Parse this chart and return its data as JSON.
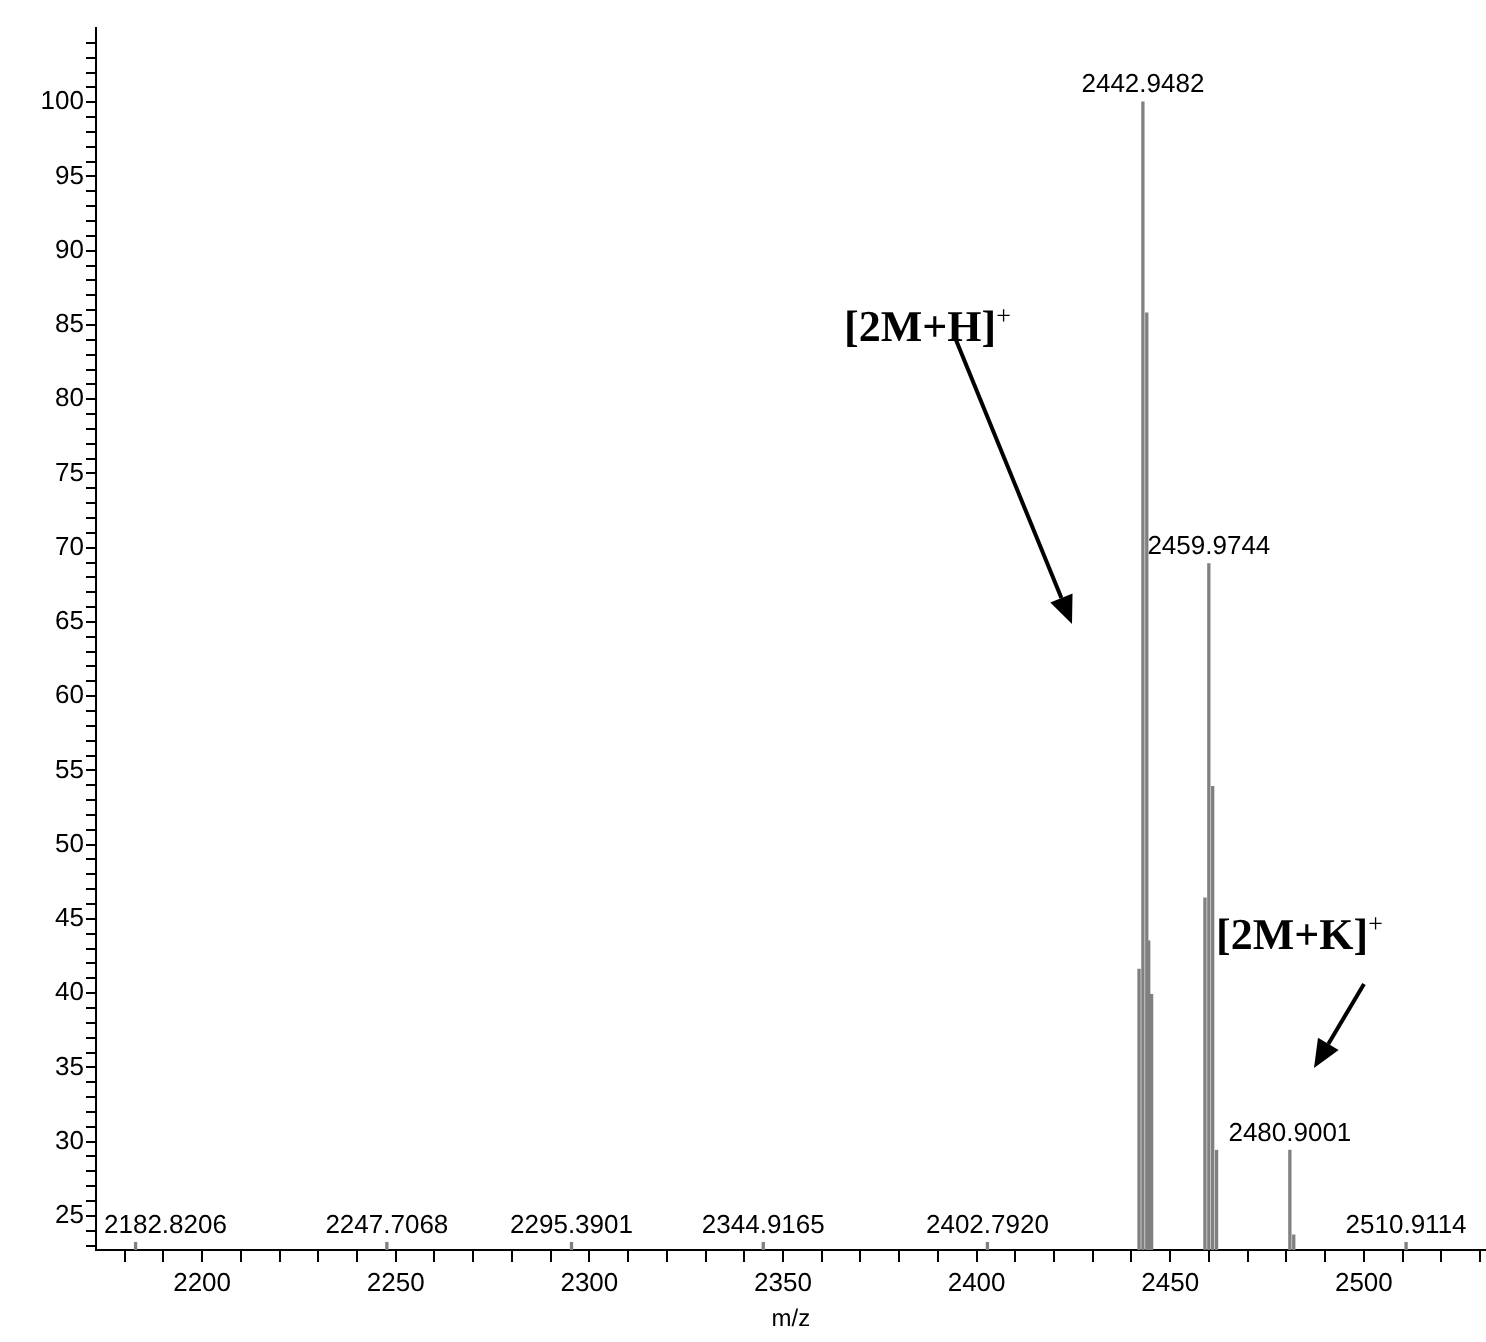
{
  "chart_data": {
    "type": "bar",
    "xlabel": "m/z",
    "color": "#808080",
    "x": [
      2182.8206,
      2247.7068,
      2295.3901,
      2344.9165,
      2402.792,
      2441.95,
      2442.9482,
      2443.95,
      2444.45,
      2445.2,
      2458.97,
      2459.9744,
      2460.97,
      2461.97,
      2480.9001,
      2481.9,
      2510.9114
    ],
    "values": [
      23.2,
      23.2,
      23.2,
      23.2,
      23.2,
      41.6,
      100,
      85.8,
      43.5,
      39.9,
      46.4,
      68.9,
      53.9,
      29.4,
      29.4,
      23.7,
      23.2
    ],
    "xlim": [
      2172.6,
      2531.5
    ],
    "ylim": [
      22.7,
      105
    ],
    "xticks": [
      {
        "value": 2180,
        "label": null
      },
      {
        "value": 2190,
        "label": null
      },
      2200,
      {
        "value": 2210,
        "label": null
      },
      {
        "value": 2220,
        "label": null
      },
      {
        "value": 2230,
        "label": null
      },
      {
        "value": 2240,
        "label": null
      },
      2250,
      {
        "value": 2260,
        "label": null
      },
      {
        "value": 2270,
        "label": null
      },
      {
        "value": 2280,
        "label": null
      },
      {
        "value": 2290,
        "label": null
      },
      2300,
      {
        "value": 2310,
        "label": null
      },
      {
        "value": 2320,
        "label": null
      },
      {
        "value": 2330,
        "label": null
      },
      {
        "value": 2340,
        "label": null
      },
      2350,
      {
        "value": 2360,
        "label": null
      },
      {
        "value": 2370,
        "label": null
      },
      {
        "value": 2380,
        "label": null
      },
      {
        "value": 2390,
        "label": null
      },
      2400,
      {
        "value": 2410,
        "label": null
      },
      {
        "value": 2420,
        "label": null
      },
      {
        "value": 2430,
        "label": null
      },
      {
        "value": 2440,
        "label": null
      },
      2450,
      {
        "value": 2460,
        "label": null
      },
      {
        "value": 2470,
        "label": null
      },
      {
        "value": 2480,
        "label": null
      },
      {
        "value": 2490,
        "label": null
      },
      2500,
      {
        "value": 2510,
        "label": null
      },
      {
        "value": 2520,
        "label": null
      },
      {
        "value": 2530,
        "label": null
      }
    ],
    "yticks": [
      {
        "value": 23,
        "label": null
      },
      {
        "value": 24,
        "label": null
      },
      25,
      {
        "value": 26,
        "label": null
      },
      {
        "value": 27,
        "label": null
      },
      {
        "value": 28,
        "label": null
      },
      {
        "value": 29,
        "label": null
      },
      30,
      {
        "value": 31,
        "label": null
      },
      {
        "value": 32,
        "label": null
      },
      {
        "value": 33,
        "label": null
      },
      {
        "value": 34,
        "label": null
      },
      35,
      {
        "value": 36,
        "label": null
      },
      {
        "value": 37,
        "label": null
      },
      {
        "value": 38,
        "label": null
      },
      {
        "value": 39,
        "label": null
      },
      40,
      {
        "value": 41,
        "label": null
      },
      {
        "value": 42,
        "label": null
      },
      {
        "value": 43,
        "label": null
      },
      {
        "value": 44,
        "label": null
      },
      45,
      {
        "value": 46,
        "label": null
      },
      {
        "value": 47,
        "label": null
      },
      {
        "value": 48,
        "label": null
      },
      {
        "value": 49,
        "label": null
      },
      50,
      {
        "value": 51,
        "label": null
      },
      {
        "value": 52,
        "label": null
      },
      {
        "value": 53,
        "label": null
      },
      {
        "value": 54,
        "label": null
      },
      55,
      {
        "value": 56,
        "label": null
      },
      {
        "value": 57,
        "label": null
      },
      {
        "value": 58,
        "label": null
      },
      {
        "value": 59,
        "label": null
      },
      60,
      {
        "value": 61,
        "label": null
      },
      {
        "value": 62,
        "label": null
      },
      {
        "value": 63,
        "label": null
      },
      {
        "value": 64,
        "label": null
      },
      65,
      {
        "value": 66,
        "label": null
      },
      {
        "value": 67,
        "label": null
      },
      {
        "value": 68,
        "label": null
      },
      {
        "value": 69,
        "label": null
      },
      70,
      {
        "value": 71,
        "label": null
      },
      {
        "value": 72,
        "label": null
      },
      {
        "value": 73,
        "label": null
      },
      {
        "value": 74,
        "label": null
      },
      75,
      {
        "value": 76,
        "label": null
      },
      {
        "value": 77,
        "label": null
      },
      {
        "value": 78,
        "label": null
      },
      {
        "value": 79,
        "label": null
      },
      80,
      {
        "value": 81,
        "label": null
      },
      {
        "value": 82,
        "label": null
      },
      {
        "value": 83,
        "label": null
      },
      {
        "value": 84,
        "label": null
      },
      85,
      {
        "value": 86,
        "label": null
      },
      {
        "value": 87,
        "label": null
      },
      {
        "value": 88,
        "label": null
      },
      {
        "value": 89,
        "label": null
      },
      90,
      {
        "value": 91,
        "label": null
      },
      {
        "value": 92,
        "label": null
      },
      {
        "value": 93,
        "label": null
      },
      {
        "value": 94,
        "label": null
      },
      95,
      {
        "value": 96,
        "label": null
      },
      {
        "value": 97,
        "label": null
      },
      {
        "value": 98,
        "label": null
      },
      {
        "value": 99,
        "label": null
      },
      100,
      {
        "value": 101,
        "label": null
      },
      {
        "value": 102,
        "label": null
      },
      {
        "value": 103,
        "label": null
      },
      {
        "value": 104,
        "label": null
      }
    ],
    "annotations": [
      {
        "text": "2182.8206",
        "x": 2182.8206,
        "y": 23.2
      },
      {
        "text": "2247.7068",
        "x": 2247.7068,
        "y": 23.2
      },
      {
        "text": "2295.3901",
        "x": 2295.3901,
        "y": 23.2
      },
      {
        "text": "2344.9165",
        "x": 2344.9165,
        "y": 23.2
      },
      {
        "text": "2402.7920",
        "x": 2402.792,
        "y": 23.2
      },
      {
        "text": "2442.9482",
        "x": 2442.9482,
        "y": 100
      },
      {
        "text": "2459.9744",
        "x": 2459.9744,
        "y": 68.9
      },
      {
        "text": "2480.9001",
        "x": 2480.9001,
        "y": 29.4
      },
      {
        "text": "2510.9114",
        "x": 2510.9114,
        "y": 23.2
      },
      "[2M+H]$^{+}$",
      "[2M+K]$^{+}$"
    ],
    "grid": false,
    "legend": false
  }
}
